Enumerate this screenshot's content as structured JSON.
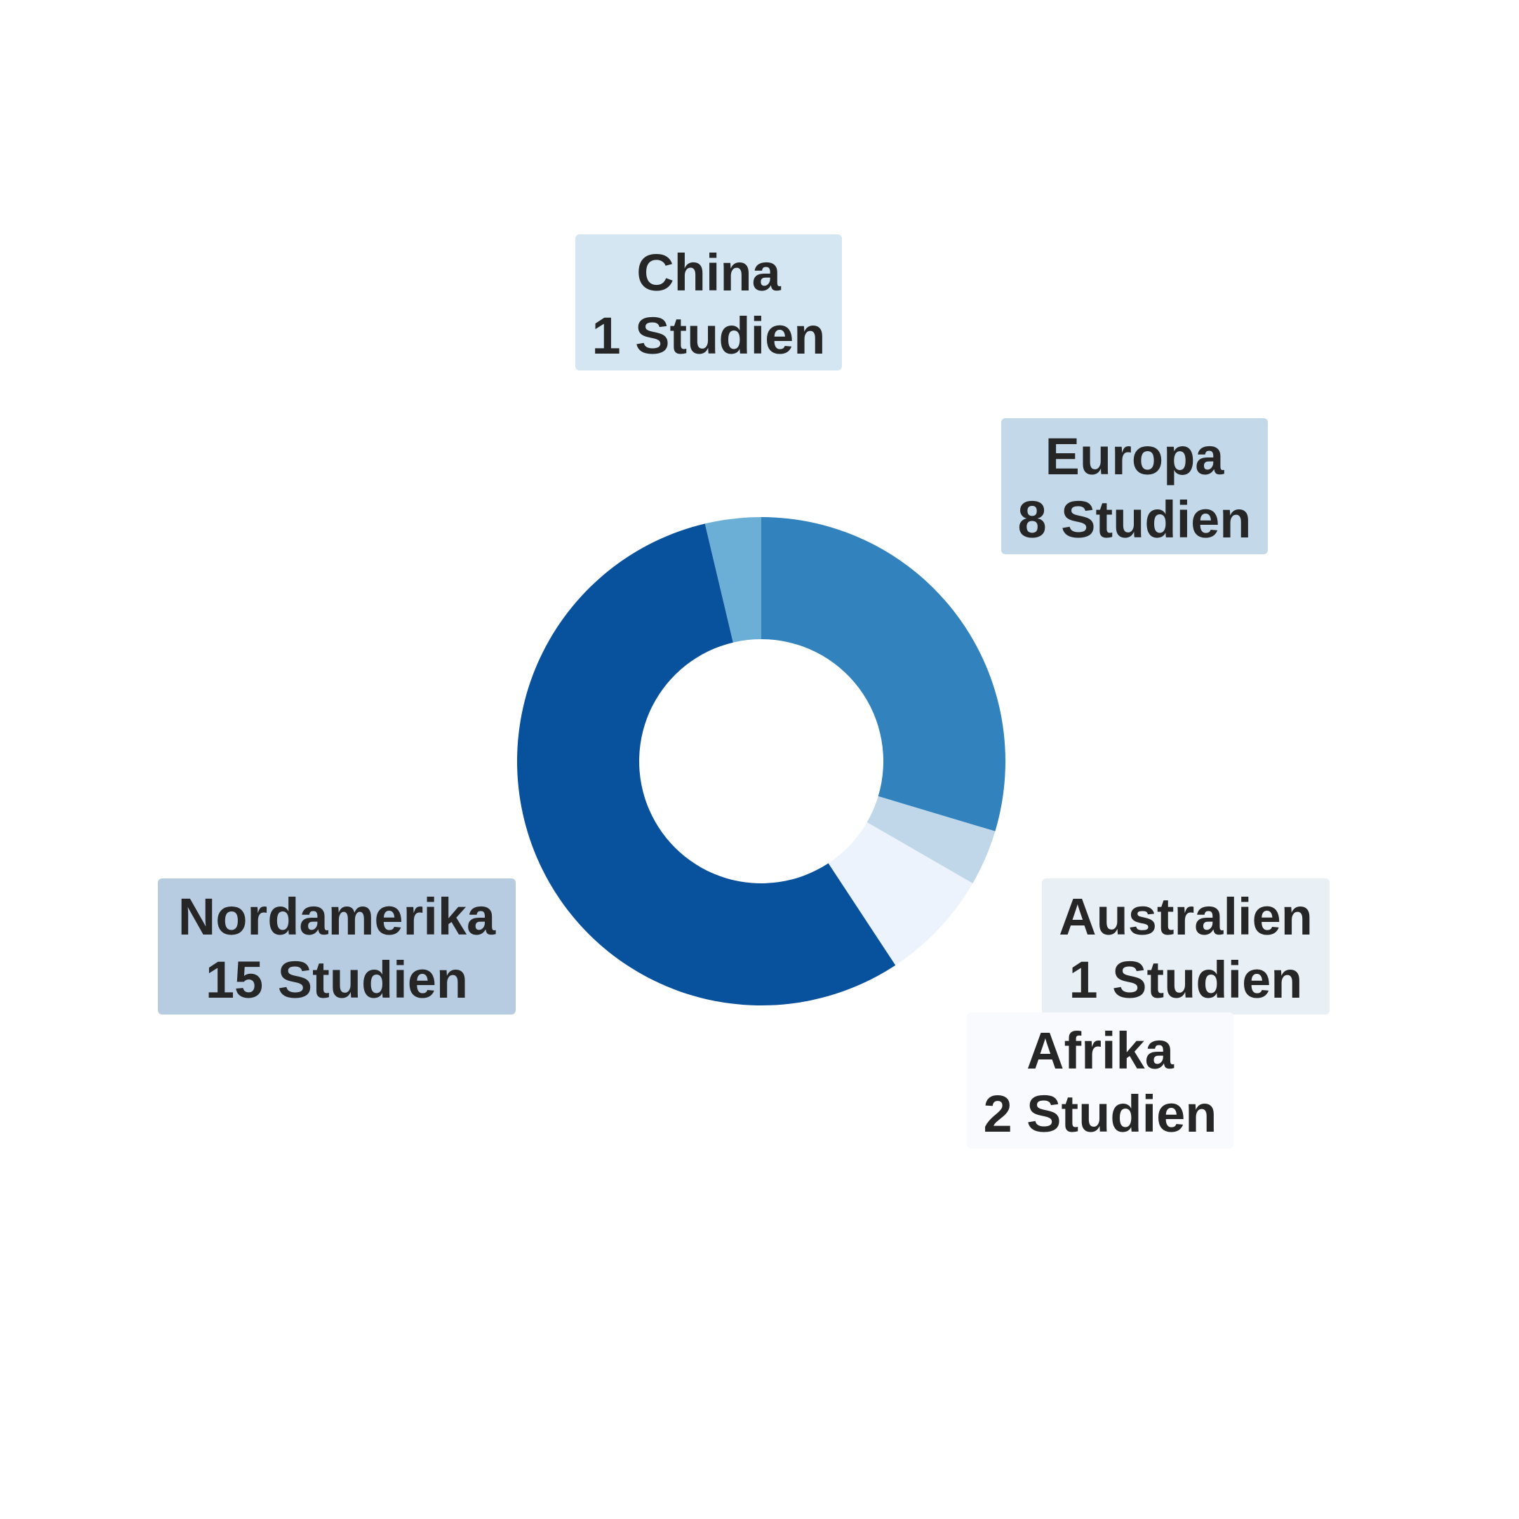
{
  "chart_data": {
    "type": "pie",
    "donut": true,
    "title": "",
    "unit_label": "Studien",
    "slices": [
      {
        "name": "Europa",
        "value": 8,
        "value_label": "8 Studien",
        "color": "#3182bd",
        "label_bg": "#c3d9ea"
      },
      {
        "name": "Australien",
        "value": 1,
        "value_label": "1 Studien",
        "color": "#bfd7e8",
        "label_bg": "#e8f0f5"
      },
      {
        "name": "Afrika",
        "value": 2,
        "value_label": "2 Studien",
        "color": "#edf3fc",
        "label_bg": "#f8fafe"
      },
      {
        "name": "Nordamerika",
        "value": 15,
        "value_label": "15 Studien",
        "color": "#08519c",
        "label_bg": "#b7cbe1"
      },
      {
        "name": "China",
        "value": 1,
        "value_label": "1 Studien",
        "color": "#6baed6",
        "label_bg": "#d3e6f2"
      }
    ],
    "legend": "none",
    "grid": false
  }
}
